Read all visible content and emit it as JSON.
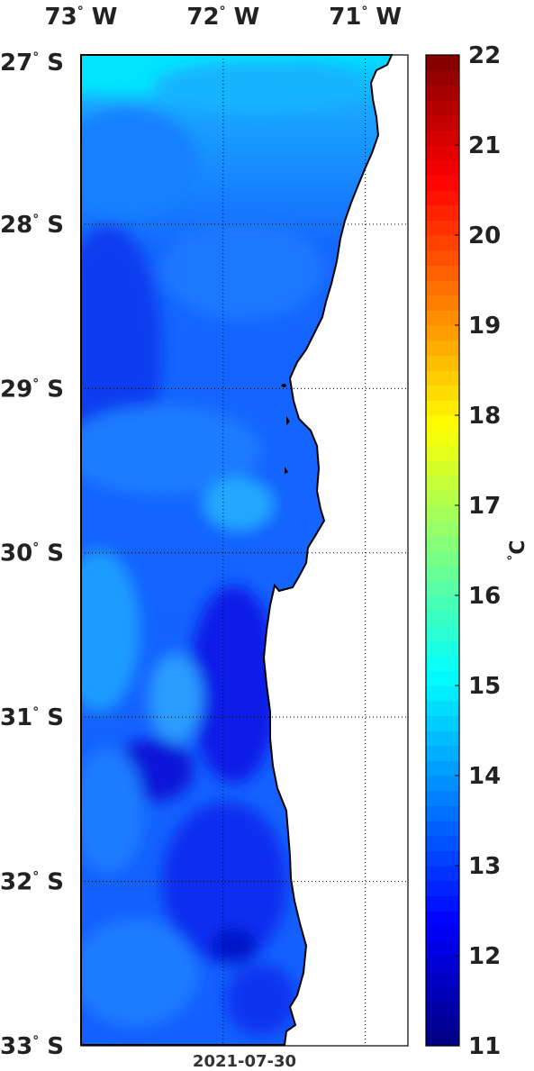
{
  "map": {
    "lon_ticks": [
      {
        "deg": "73",
        "hemi": "W"
      },
      {
        "deg": "72",
        "hemi": "W"
      },
      {
        "deg": "71",
        "hemi": "W"
      }
    ],
    "lat_ticks": [
      {
        "deg": "27",
        "hemi": "S"
      },
      {
        "deg": "28",
        "hemi": "S"
      },
      {
        "deg": "29",
        "hemi": "S"
      },
      {
        "deg": "30",
        "hemi": "S"
      },
      {
        "deg": "31",
        "hemi": "S"
      },
      {
        "deg": "32",
        "hemi": "S"
      },
      {
        "deg": "33",
        "hemi": "S"
      }
    ],
    "lon_range": [
      -73,
      -70.7
    ],
    "lat_range": [
      -33,
      -26.97
    ],
    "date": "2021-07-30",
    "land_color": "#ffffff",
    "grid": "dotted",
    "coast_color": "#000000"
  },
  "colorbar": {
    "min": 11,
    "max": 22,
    "ticks": [
      "22",
      "21",
      "20",
      "19",
      "18",
      "17",
      "16",
      "15",
      "14",
      "13",
      "12",
      "11"
    ],
    "unit_symbol": "°",
    "unit_letter": "C",
    "colormap": "jet"
  }
}
